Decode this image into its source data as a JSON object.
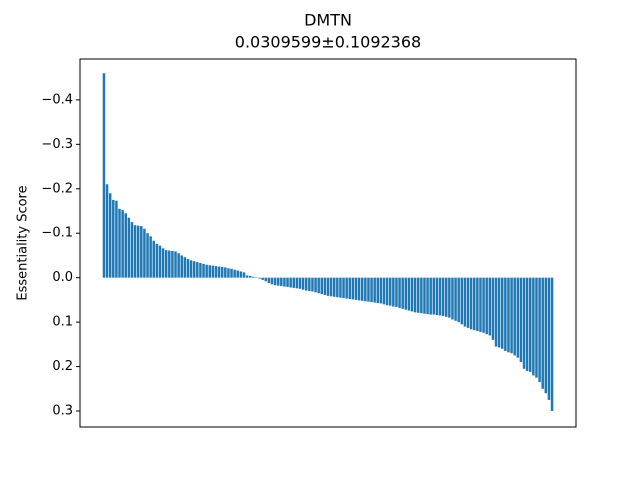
{
  "chart_data": {
    "type": "bar",
    "title": "DMTN",
    "subtitle": "0.0309599±0.1092368",
    "y_label": "Essentiality Score",
    "color": "#1f77b4",
    "y_inverted": true,
    "ylim": [
      -0.492,
      0.336
    ],
    "yticks": [
      {
        "value": -0.4,
        "label": "−0.4"
      },
      {
        "value": -0.3,
        "label": "−0.3"
      },
      {
        "value": -0.2,
        "label": "−0.2"
      },
      {
        "value": -0.1,
        "label": "−0.1"
      },
      {
        "value": 0.0,
        "label": "0.0"
      },
      0.1,
      0.2,
      0.3
    ],
    "values": [
      -0.46,
      -0.21,
      -0.19,
      -0.175,
      -0.173,
      -0.155,
      -0.152,
      -0.145,
      -0.135,
      -0.125,
      -0.118,
      -0.117,
      -0.116,
      -0.11,
      -0.1,
      -0.093,
      -0.083,
      -0.076,
      -0.072,
      -0.066,
      -0.062,
      -0.061,
      -0.06,
      -0.059,
      -0.055,
      -0.05,
      -0.046,
      -0.042,
      -0.039,
      -0.037,
      -0.035,
      -0.033,
      -0.031,
      -0.029,
      -0.028,
      -0.027,
      -0.026,
      -0.025,
      -0.024,
      -0.023,
      -0.021,
      -0.02,
      -0.018,
      -0.016,
      -0.014,
      -0.012,
      -0.005,
      -0.004,
      -0.002,
      -0.001,
      0.002,
      0.005,
      0.008,
      0.012,
      0.015,
      0.017,
      0.018,
      0.019,
      0.02,
      0.021,
      0.022,
      0.023,
      0.024,
      0.025,
      0.027,
      0.029,
      0.03,
      0.031,
      0.033,
      0.035,
      0.037,
      0.039,
      0.041,
      0.042,
      0.043,
      0.044,
      0.045,
      0.046,
      0.047,
      0.048,
      0.049,
      0.05,
      0.051,
      0.052,
      0.053,
      0.054,
      0.055,
      0.056,
      0.057,
      0.058,
      0.06,
      0.062,
      0.063,
      0.065,
      0.066,
      0.068,
      0.07,
      0.072,
      0.074,
      0.076,
      0.078,
      0.079,
      0.08,
      0.081,
      0.082,
      0.083,
      0.083,
      0.084,
      0.085,
      0.086,
      0.088,
      0.09,
      0.094,
      0.097,
      0.1,
      0.105,
      0.11,
      0.113,
      0.116,
      0.118,
      0.12,
      0.122,
      0.124,
      0.127,
      0.13,
      0.14,
      0.155,
      0.157,
      0.16,
      0.165,
      0.168,
      0.17,
      0.175,
      0.18,
      0.19,
      0.205,
      0.21,
      0.212,
      0.22,
      0.225,
      0.235,
      0.25,
      0.26,
      0.275,
      0.3
    ]
  }
}
